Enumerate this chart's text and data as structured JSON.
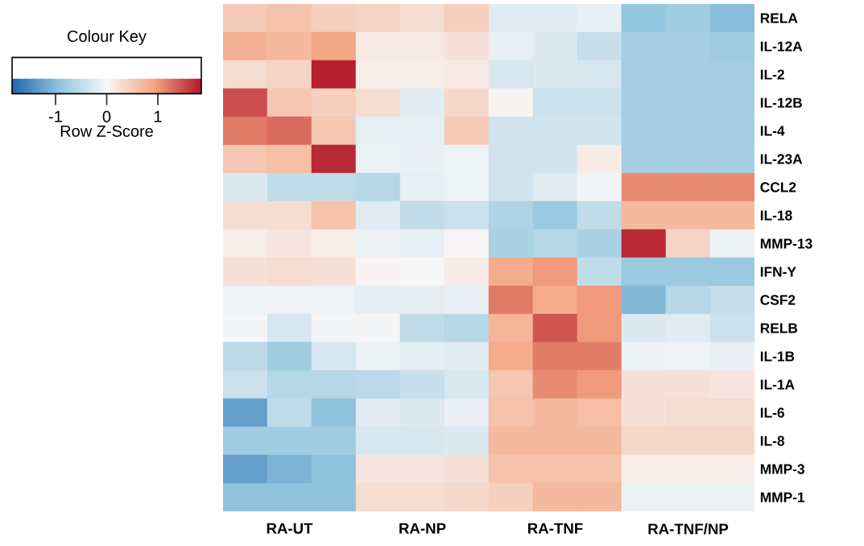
{
  "chart_data": {
    "type": "heatmap",
    "legend_title": "Colour Key",
    "clabel": "Row Z-Score",
    "categories": [
      null,
      "RA-UT",
      null,
      null,
      "RA-NP",
      null,
      null,
      "RA-TNF",
      null,
      null,
      "RA-TNF/NP",
      null
    ],
    "y_categories": [
      "RELA",
      "IL-12A",
      "IL-2",
      "IL-12B",
      "IL-4",
      "IL-23A",
      "CCL2",
      "IL-18",
      "MMP-13",
      "IFN-Y",
      "CSF2",
      "RELB",
      "IL-1B",
      "IL-1A",
      "IL-6",
      "IL-8",
      "MMP-3",
      "MMP-1"
    ],
    "cells": [
      [
        0.5,
        0.6,
        0.45,
        0.4,
        0.3,
        0.45,
        -0.2,
        -0.2,
        -0.15,
        -0.9,
        -0.8,
        -1.0
      ],
      [
        0.8,
        0.7,
        0.9,
        0.15,
        0.15,
        0.25,
        -0.15,
        -0.25,
        -0.45,
        -0.75,
        -0.75,
        -0.8
      ],
      [
        0.3,
        0.4,
        1.8,
        0.1,
        0.1,
        0.15,
        -0.3,
        -0.25,
        -0.3,
        -0.75,
        -0.75,
        -0.75
      ],
      [
        1.5,
        0.55,
        0.45,
        0.3,
        -0.2,
        0.35,
        0.05,
        -0.4,
        -0.4,
        -0.75,
        -0.75,
        -0.75
      ],
      [
        1.2,
        1.3,
        0.55,
        -0.15,
        -0.15,
        0.5,
        -0.35,
        -0.35,
        -0.35,
        -0.75,
        -0.75,
        -0.75
      ],
      [
        0.55,
        0.65,
        1.75,
        -0.1,
        -0.12,
        -0.08,
        -0.35,
        -0.35,
        0.12,
        -0.75,
        -0.75,
        -0.75
      ],
      [
        -0.25,
        -0.5,
        -0.5,
        -0.6,
        -0.15,
        -0.08,
        -0.35,
        -0.2,
        -0.05,
        1.1,
        1.1,
        1.1
      ],
      [
        0.3,
        0.3,
        0.6,
        -0.2,
        -0.5,
        -0.4,
        -0.65,
        -0.85,
        -0.5,
        0.7,
        0.7,
        0.7
      ],
      [
        0.1,
        0.2,
        0.1,
        -0.1,
        -0.15,
        0.02,
        -0.7,
        -0.6,
        -0.7,
        1.75,
        0.4,
        -0.1
      ],
      [
        0.25,
        0.3,
        0.25,
        0.03,
        0.0,
        0.12,
        0.85,
        1.0,
        -0.5,
        -0.85,
        -0.85,
        -0.85
      ],
      [
        -0.08,
        -0.05,
        -0.08,
        -0.18,
        -0.18,
        -0.12,
        1.2,
        0.85,
        1.0,
        -1.05,
        -0.6,
        -0.45
      ],
      [
        -0.03,
        -0.3,
        -0.03,
        -0.03,
        -0.5,
        -0.6,
        0.75,
        1.45,
        1.0,
        -0.25,
        -0.2,
        -0.4
      ],
      [
        -0.55,
        -0.8,
        -0.3,
        -0.1,
        -0.18,
        -0.2,
        0.85,
        1.2,
        1.2,
        -0.1,
        -0.08,
        -0.12
      ],
      [
        -0.4,
        -0.6,
        -0.6,
        -0.55,
        -0.45,
        -0.3,
        0.55,
        1.1,
        1.0,
        0.25,
        0.25,
        0.2
      ],
      [
        -1.3,
        -0.5,
        -0.95,
        -0.2,
        -0.25,
        -0.12,
        0.6,
        0.7,
        0.65,
        0.25,
        0.3,
        0.3
      ],
      [
        -0.8,
        -0.8,
        -0.8,
        -0.3,
        -0.3,
        -0.25,
        0.7,
        0.7,
        0.7,
        0.35,
        0.35,
        0.35
      ],
      [
        -1.3,
        -1.1,
        -0.95,
        0.2,
        0.2,
        0.25,
        0.6,
        0.6,
        0.6,
        0.1,
        0.1,
        0.1
      ],
      [
        -0.95,
        -0.95,
        -0.95,
        0.3,
        0.3,
        0.35,
        0.45,
        0.7,
        0.7,
        -0.1,
        -0.1,
        -0.1
      ]
    ],
    "clim": [
      -1.85,
      1.85
    ],
    "cticks": [
      -1,
      0,
      1
    ]
  }
}
